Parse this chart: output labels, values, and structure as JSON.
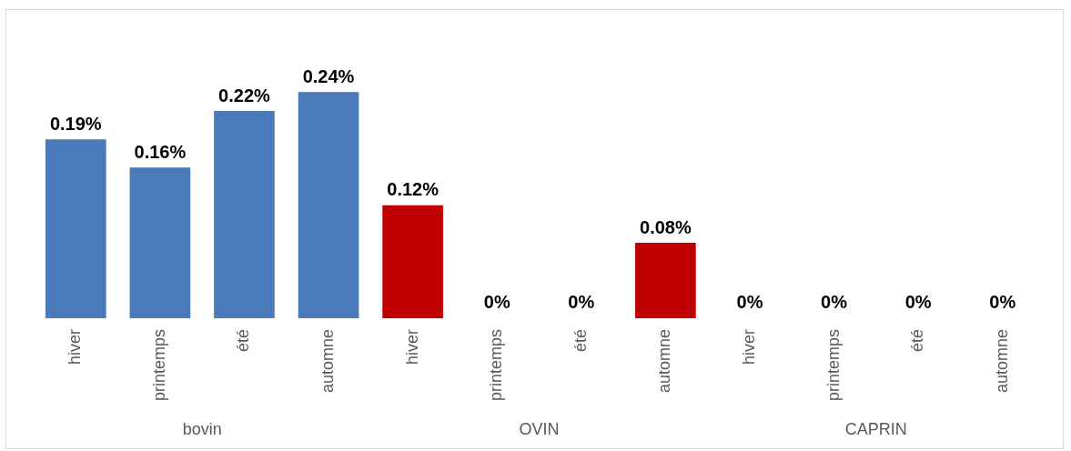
{
  "chart_data": {
    "type": "bar",
    "categories": [
      "hiver",
      "printemps",
      "été",
      "automne",
      "hiver",
      "printemps",
      "été",
      "automne",
      "hiver",
      "printemps",
      "été",
      "automne"
    ],
    "values": [
      0.19,
      0.16,
      0.22,
      0.24,
      0.12,
      0,
      0,
      0.08,
      0,
      0,
      0,
      0
    ],
    "colors": [
      "#4a7ab8",
      "#4a7ab8",
      "#4a7ab8",
      "#4a7ab8",
      "#c00000",
      "#c00000",
      "#c00000",
      "#c00000",
      "#c00000",
      "#c00000",
      "#c00000",
      "#c00000"
    ],
    "value_labels": [
      "0.19%",
      "0.16%",
      "0.22%",
      "0.24%",
      "0.12%",
      "0%",
      "0%",
      "0.08%",
      "0%",
      "0%",
      "0%",
      "0%"
    ],
    "annotations": [
      "bovin",
      "OVIN",
      "CAPRIN"
    ],
    "grid": false,
    "legend": false
  }
}
